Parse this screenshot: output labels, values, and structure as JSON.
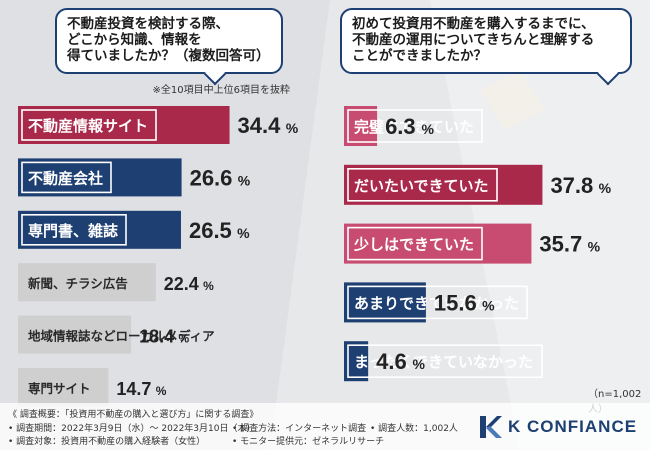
{
  "colors": {
    "navy": "#1d3f72",
    "crimson": "#a9294b",
    "pink": "#c84c72",
    "gray": "#cfcfcf",
    "brand": "#1d3f72"
  },
  "left_question": {
    "line1": "不動産投資を検討する際、",
    "line2": "どこから知識、情報を",
    "line3": "得ていましたか？（複数回答可）"
  },
  "left_note": "※全10項目中上位6項目を抜粋",
  "right_question": {
    "line1": "初めて投資用不動産を購入するまでに、",
    "line2": "不動産の運用についてきちんと理解する",
    "line3": "ことができましたか？"
  },
  "sample_size": "（n=1,002人）",
  "chart_data": [
    {
      "type": "bar",
      "orientation": "horizontal",
      "categories": [
        "不動産情報サイト",
        "不動産会社",
        "専門書、雑誌",
        "新聞、チラシ広告",
        "地域情報誌などローカルメディア",
        "専門サイト"
      ],
      "values": [
        34.4,
        26.6,
        26.5,
        22.4,
        18.4,
        14.7
      ],
      "unit": "%",
      "bar_colors": [
        "crimson",
        "navy",
        "navy",
        "gray",
        "gray",
        "gray"
      ],
      "xlim": [
        0,
        40
      ]
    },
    {
      "type": "bar",
      "orientation": "horizontal",
      "categories": [
        "完璧にできていた",
        "だいたいできていた",
        "少しはできていた",
        "あまりできていなかった",
        "まったくできていなかった"
      ],
      "values": [
        6.3,
        37.8,
        35.7,
        15.6,
        4.6
      ],
      "unit": "%",
      "bar_colors": [
        "pink",
        "crimson",
        "pink",
        "navy",
        "navy"
      ],
      "xlim": [
        0,
        40
      ]
    }
  ],
  "footer": {
    "title": "《 調査概要：「投資用不動産の購入と選び方」に関する調査》",
    "period": "• 調査期間：2022年3月9日（水）～ 2022年3月10日（木）",
    "method": "• 調査方法：インターネット調査",
    "people": "• 調査人数：1,002人",
    "target": "• 調査対象：投資用不動産の購入経験者（女性）",
    "monitor": "• モニター提供元：ゼネラルリサーチ"
  },
  "logo": {
    "text": "K CONFIANCE"
  }
}
